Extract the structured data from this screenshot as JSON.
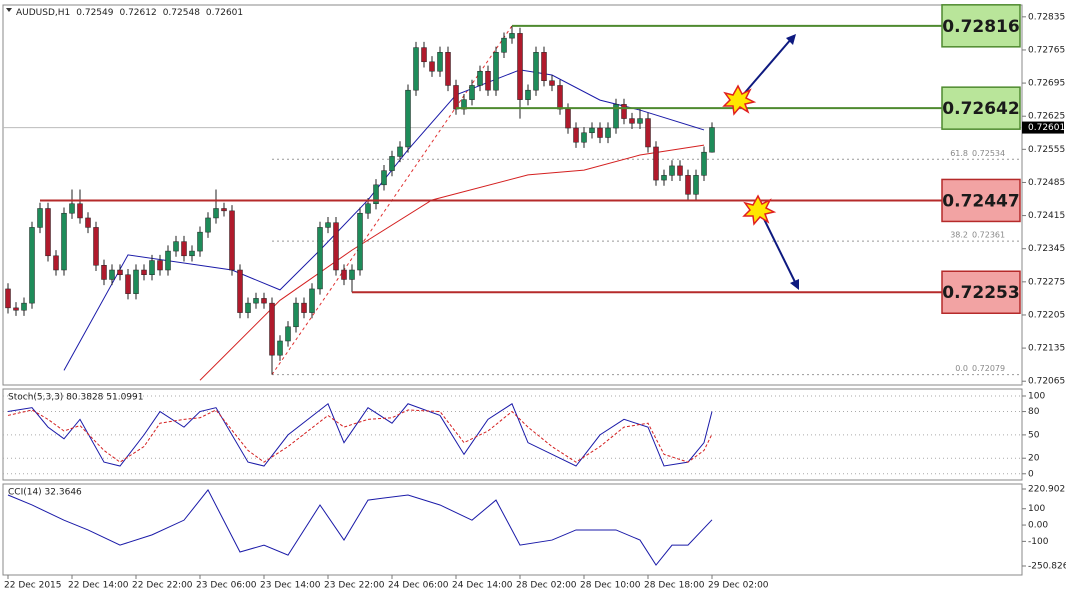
{
  "chart_data": [
    {
      "type": "candlestick",
      "title": "AUDUSD,H1",
      "last_ohlc": [
        0.72549,
        0.72612,
        0.72548,
        0.72601
      ],
      "categories": [
        "22 Dec 2015",
        null,
        null,
        null,
        null,
        null,
        null,
        null,
        "22 Dec 14:00",
        null,
        null,
        null,
        null,
        null,
        null,
        null,
        "22 Dec 22:00",
        null,
        null,
        null,
        null,
        null,
        null,
        null,
        "23 Dec 06:00",
        null,
        null,
        null,
        null,
        null,
        null,
        null,
        "23 Dec 14:00",
        null,
        null,
        null,
        null,
        null,
        null,
        null,
        "23 Dec 22:00",
        null,
        null,
        null,
        null,
        null,
        null,
        null,
        "24 Dec 06:00",
        null,
        null,
        null,
        null,
        null,
        null,
        null,
        "24 Dec 14:00",
        null,
        null,
        null,
        null,
        null,
        null,
        null,
        "28 Dec 02:00",
        null,
        null,
        null,
        null,
        null,
        null,
        null,
        "28 Dec 10:00",
        null,
        null,
        null,
        null,
        null,
        null,
        null,
        "28 Dec 18:00",
        null,
        null,
        null,
        null,
        null,
        null,
        null,
        "29 Dec 02:00"
      ],
      "open": [
        0.7226,
        0.7222,
        0.72215,
        0.7223,
        0.7239,
        0.7243,
        0.7233,
        0.723,
        0.7242,
        0.7244,
        0.7241,
        0.7239,
        0.7231,
        0.7228,
        0.723,
        0.7229,
        0.7225,
        0.723,
        0.7229,
        0.7232,
        0.723,
        0.7234,
        0.7236,
        0.7233,
        0.7234,
        0.7238,
        0.7241,
        0.7243,
        0.72425,
        0.723,
        0.7221,
        0.7223,
        0.7224,
        0.7223,
        0.7212,
        0.7215,
        0.7218,
        0.7223,
        0.7221,
        0.7226,
        0.7239,
        0.724,
        0.723,
        0.7228,
        0.723,
        0.7242,
        0.7244,
        0.7248,
        0.7251,
        0.7254,
        0.7256,
        0.7268,
        0.7277,
        0.7274,
        0.7272,
        0.7276,
        0.7269,
        0.7264,
        0.7266,
        0.7269,
        0.7272,
        0.7268,
        0.7276,
        0.7279,
        0.728,
        0.7266,
        0.7268,
        0.7276,
        0.727,
        0.7269,
        0.7264,
        0.726,
        0.7257,
        0.7259,
        0.726,
        0.7258,
        0.726,
        0.7265,
        0.7262,
        0.7261,
        0.7262,
        0.7256,
        0.7249,
        0.725,
        0.7252,
        0.725,
        0.7246,
        0.725,
        0.72549
      ],
      "high": [
        0.72272,
        0.72232,
        0.72242,
        0.72402,
        0.72442,
        0.72442,
        0.72342,
        0.72432,
        0.7247,
        0.7247,
        0.72422,
        0.72402,
        0.72322,
        0.72312,
        0.72312,
        0.72302,
        0.72312,
        0.72312,
        0.72332,
        0.72332,
        0.72352,
        0.72372,
        0.72372,
        0.72352,
        0.72392,
        0.72422,
        0.7247,
        0.72442,
        0.72437,
        0.72312,
        0.72242,
        0.72252,
        0.72252,
        0.72242,
        0.72162,
        0.72192,
        0.72242,
        0.72242,
        0.72272,
        0.72402,
        0.72412,
        0.72412,
        0.72312,
        0.72312,
        0.72432,
        0.72452,
        0.72492,
        0.72522,
        0.72552,
        0.72572,
        0.72692,
        0.72782,
        0.72782,
        0.72752,
        0.72772,
        0.72772,
        0.72702,
        0.72672,
        0.72702,
        0.72732,
        0.72732,
        0.72772,
        0.72802,
        0.72816,
        0.72812,
        0.72692,
        0.72772,
        0.72772,
        0.72712,
        0.72702,
        0.72652,
        0.72612,
        0.72602,
        0.72612,
        0.72612,
        0.72612,
        0.72662,
        0.72662,
        0.72632,
        0.72642,
        0.72632,
        0.72572,
        0.72512,
        0.72532,
        0.72532,
        0.72512,
        0.72512,
        0.72561,
        0.72612
      ],
      "low": [
        0.72208,
        0.72203,
        0.72203,
        0.72218,
        0.72378,
        0.72318,
        0.72288,
        0.72288,
        0.72408,
        0.72398,
        0.72378,
        0.72298,
        0.72268,
        0.72268,
        0.72278,
        0.72238,
        0.72238,
        0.72278,
        0.72278,
        0.72288,
        0.72288,
        0.72328,
        0.72318,
        0.72318,
        0.72328,
        0.72368,
        0.72398,
        0.72413,
        0.72288,
        0.72198,
        0.72198,
        0.72218,
        0.72218,
        0.72079,
        0.72108,
        0.72138,
        0.72168,
        0.72198,
        0.72198,
        0.72248,
        0.72378,
        0.72288,
        0.72268,
        0.72253,
        0.72288,
        0.72408,
        0.72428,
        0.72468,
        0.72498,
        0.72528,
        0.72548,
        0.72668,
        0.72728,
        0.72708,
        0.72708,
        0.72678,
        0.72628,
        0.72628,
        0.72648,
        0.72678,
        0.72668,
        0.72668,
        0.72748,
        0.72778,
        0.7262,
        0.72648,
        0.72668,
        0.72688,
        0.72678,
        0.72628,
        0.72588,
        0.72558,
        0.72558,
        0.72578,
        0.72568,
        0.72568,
        0.72588,
        0.72608,
        0.72598,
        0.72598,
        0.72548,
        0.72478,
        0.72478,
        0.72488,
        0.72488,
        0.72448,
        0.72448,
        0.72488,
        0.72548
      ],
      "close": [
        0.7222,
        0.72215,
        0.7223,
        0.7239,
        0.7243,
        0.7233,
        0.723,
        0.7242,
        0.7244,
        0.7241,
        0.7239,
        0.7231,
        0.7228,
        0.723,
        0.7229,
        0.7225,
        0.723,
        0.7229,
        0.7232,
        0.723,
        0.7234,
        0.7236,
        0.7233,
        0.7234,
        0.7238,
        0.7241,
        0.7243,
        0.72425,
        0.723,
        0.7221,
        0.7223,
        0.7224,
        0.7223,
        0.7212,
        0.7215,
        0.7218,
        0.7223,
        0.7221,
        0.7226,
        0.7239,
        0.724,
        0.723,
        0.7228,
        0.723,
        0.7242,
        0.7244,
        0.7248,
        0.7251,
        0.7254,
        0.7256,
        0.7268,
        0.7277,
        0.7274,
        0.7272,
        0.7276,
        0.7269,
        0.7264,
        0.7266,
        0.7269,
        0.7272,
        0.7268,
        0.7276,
        0.7279,
        0.728,
        0.7266,
        0.7268,
        0.7276,
        0.727,
        0.7269,
        0.7264,
        0.726,
        0.7257,
        0.7259,
        0.726,
        0.7258,
        0.726,
        0.7265,
        0.7262,
        0.7261,
        0.7262,
        0.7256,
        0.7249,
        0.725,
        0.7252,
        0.725,
        0.7246,
        0.725,
        0.72549,
        0.72601
      ],
      "up_color": "#1e8c5a",
      "down_color": "#b01a2c",
      "ma": [
        {
          "color": "#1a1aa8",
          "x": [
            7,
            15,
            28,
            34,
            39,
            45,
            50,
            56,
            64,
            68,
            74,
            79,
            87
          ],
          "values": [
            0.72088,
            0.72332,
            0.723,
            0.72258,
            0.72342,
            0.72448,
            0.72554,
            0.7267,
            0.72723,
            0.72712,
            0.72659,
            0.72638,
            0.72596
          ]
        },
        {
          "color": "#d42020",
          "x": [
            24,
            34,
            43,
            53,
            65,
            72,
            79,
            87
          ],
          "values": [
            0.72067,
            0.72236,
            0.72342,
            0.72448,
            0.72501,
            0.72511,
            0.72543,
            0.72564
          ]
        }
      ],
      "levels": [
        {
          "value": 0.72816,
          "color": "#4e8a2f",
          "fill": "#b9e59a"
        },
        {
          "value": 0.72642,
          "color": "#4e8a2f",
          "fill": "#b9e59a"
        },
        {
          "value": 0.72447,
          "color": "#b52a2a",
          "fill": "#f2a3a3"
        },
        {
          "value": 0.72253,
          "color": "#b52a2a",
          "fill": "#f2a3a3"
        }
      ],
      "fib": [
        {
          "level": 61.8,
          "price": 0.72534
        },
        {
          "level": 38.2,
          "price": 0.72361
        },
        {
          "level": {
            "value": 0,
            "label": "0.0"
          },
          "price": 0.72079
        }
      ],
      "last": 0.72601,
      "ylim": [
        0.72057,
        0.7286
      ],
      "yticks": [
        0.72835,
        0.72765,
        0.72695,
        0.72625,
        0.72555,
        0.72485,
        0.72415,
        0.72345,
        0.72275,
        0.72205,
        0.72135,
        0.72065
      ]
    },
    {
      "type": "line",
      "title": "Stoch(5,3,3) 80.3828 51.0991",
      "grid": true,
      "x": [
        0,
        3,
        5,
        7,
        9,
        12,
        14,
        17,
        19,
        22,
        24,
        26,
        30,
        32,
        35,
        40,
        42,
        45,
        48,
        50,
        54,
        57,
        60,
        63,
        65,
        68,
        71,
        74,
        77,
        80,
        82,
        85,
        87,
        88
      ],
      "series": [
        {
          "color": "#1a1aa8",
          "values": [
            80,
            85,
            60,
            45,
            70,
            15,
            10,
            50,
            80,
            60,
            80,
            85,
            15,
            10,
            50,
            90,
            40,
            85,
            65,
            90,
            75,
            25,
            70,
            90,
            40,
            25,
            10,
            50,
            70,
            60,
            10,
            15,
            40,
            80
          ]
        },
        {
          "color": "#d42020",
          "dash": true,
          "values": [
            75,
            82,
            70,
            55,
            62,
            30,
            15,
            35,
            65,
            70,
            72,
            82,
            30,
            15,
            35,
            75,
            60,
            70,
            72,
            82,
            80,
            40,
            55,
            80,
            60,
            35,
            15,
            35,
            60,
            65,
            25,
            15,
            30,
            51
          ]
        }
      ],
      "ylim": [
        -8,
        109
      ],
      "yticks": [
        100,
        80,
        50,
        20,
        0
      ]
    },
    {
      "type": "line",
      "title": "CCI(14) 32.3646",
      "grid": false,
      "x": [
        0,
        3,
        7,
        10,
        14,
        18,
        22,
        25,
        29,
        32,
        35,
        39,
        42,
        45,
        50,
        54,
        58,
        61,
        64,
        68,
        71,
        76,
        79,
        81,
        83,
        85,
        88
      ],
      "series": [
        {
          "color": "#1a1aa8",
          "values": [
            184,
            123,
            30,
            -30,
            -123,
            -60,
            30,
            215,
            -165,
            -123,
            -184,
            123,
            -92,
            153,
            184,
            123,
            30,
            153,
            -123,
            -92,
            -30,
            -30,
            -92,
            -245,
            -123,
            -123,
            32
          ]
        }
      ],
      "ylim": [
        -306,
        251.5
      ],
      "yticks": [
        220.902,
        100,
        {
          "value": 0,
          "label": "0.00"
        },
        -100,
        -250.826
      ]
    }
  ]
}
